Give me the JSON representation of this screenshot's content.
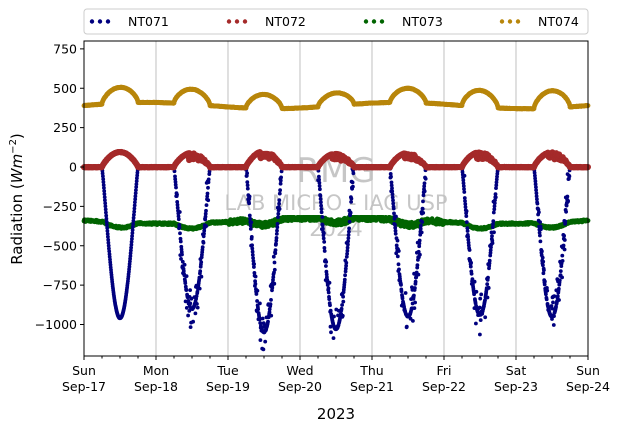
{
  "chart_data": {
    "type": "scatter",
    "xlabel": "2023",
    "ylabel_prefix": "Radiation (",
    "ylabel_unit": "Wm",
    "ylabel_exp": "−2",
    "ylabel_suffix": ")",
    "ylim": [
      -1200,
      800
    ],
    "yticks": [
      -1000,
      -750,
      -500,
      -250,
      0,
      250,
      500,
      750
    ],
    "ytick_labels": [
      "−1000",
      "−750",
      "−500",
      "−250",
      "0",
      "250",
      "500",
      "750"
    ],
    "xlim_days": [
      0,
      7
    ],
    "xticks": [
      {
        "day": 0,
        "line1": "Sun",
        "line2": "Sep-17"
      },
      {
        "day": 1,
        "line1": "Mon",
        "line2": "Sep-18"
      },
      {
        "day": 2,
        "line1": "Tue",
        "line2": "Sep-19"
      },
      {
        "day": 3,
        "line1": "Wed",
        "line2": "Sep-20"
      },
      {
        "day": 4,
        "line1": "Thu",
        "line2": "Sep-21"
      },
      {
        "day": 5,
        "line1": "Fri",
        "line2": "Sep-22"
      },
      {
        "day": 6,
        "line1": "Sat",
        "line2": "Sep-23"
      },
      {
        "day": 7,
        "line1": "Sun",
        "line2": "Sep-24"
      }
    ],
    "grid": "vertical",
    "legend_position": "top",
    "series": [
      {
        "name": "NT071",
        "color": "#00007f",
        "day_minimum": [
          -960,
          -900,
          -1050,
          -1030,
          -950,
          -940,
          -950
        ]
      },
      {
        "name": "NT072",
        "color": "#a52a2a",
        "day_peak": [
          95,
          90,
          100,
          85,
          90,
          95,
          95
        ]
      },
      {
        "name": "NT073",
        "color": "#006400",
        "approx_range": [
          -420,
          -320
        ]
      },
      {
        "name": "NT074",
        "color": "#b8860b",
        "day_peak": [
          490,
          485,
          480,
          470,
          480,
          495,
          500
        ],
        "night_level": 390
      }
    ]
  },
  "watermark": {
    "line1": "RMG",
    "line2": "LAB MICRO - IAG USP",
    "line3": "2024"
  }
}
